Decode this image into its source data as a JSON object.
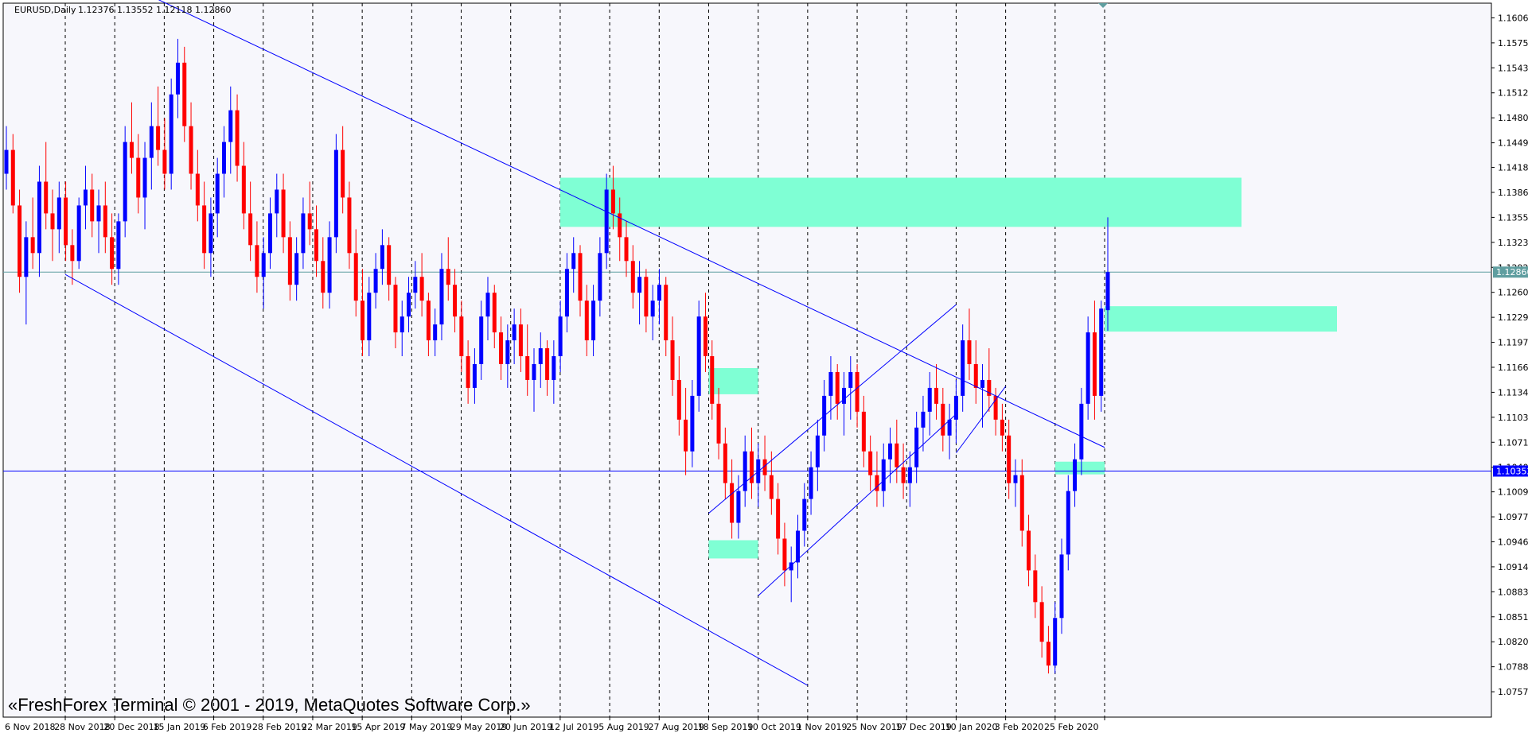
{
  "header": {
    "symbol": "EURUSD,Daily",
    "ohlc": "1.12376 1.13552 1.12118 1.12860"
  },
  "watermark": "«FreshForex Terminal © 2001 - 2019, MetaQuotes Software Corp.»",
  "colors": {
    "background": "#f7f7fc",
    "bull": "#0000ff",
    "bear": "#ff0000",
    "zone": "#7fffd4",
    "channel": "#0000ff",
    "hline_price": "#5f9ea0",
    "hline_blue": "#0000ff",
    "grid": "#000000",
    "frame": "#000000"
  },
  "price_badges": [
    {
      "value": "1.12860",
      "price": 1.1286
    },
    {
      "value": "1.10352",
      "price": 1.10352
    }
  ],
  "chart_data": {
    "type": "candlestick",
    "title": "EURUSD,Daily",
    "ylim": [
      1.0725,
      1.1625
    ],
    "y_ticks": [
      "1.16065",
      "1.15750",
      "1.15435",
      "1.15120",
      "1.14805",
      "1.14490",
      "1.14180",
      "1.13865",
      "1.13550",
      "1.13235",
      "1.12920",
      "1.12605",
      "1.12290",
      "1.11975",
      "1.11660",
      "1.11345",
      "1.11030",
      "1.10715",
      "1.10400",
      "1.10090",
      "1.09775",
      "1.09460",
      "1.09145",
      "1.08830",
      "1.08515",
      "1.08200",
      "1.07885",
      "1.07570"
    ],
    "x_ticks": [
      "6 Nov 2018",
      "28 Nov 2018",
      "20 Dec 2018",
      "15 Jan 2019",
      "6 Feb 2019",
      "28 Feb 2019",
      "22 Mar 2019",
      "15 Apr 2019",
      "7 May 2019",
      "29 May 2019",
      "20 Jun 2019",
      "12 Jul 2019",
      "5 Aug 2019",
      "27 Aug 2019",
      "18 Sep 2019",
      "10 Oct 2019",
      "1 Nov 2019",
      "25 Nov 2019",
      "17 Dec 2019",
      "10 Jan 2020",
      "3 Feb 2020",
      "25 Feb 2020"
    ],
    "grid": "vertical dashed",
    "horizontal_lines": [
      1.1286,
      1.10352
    ],
    "zones": [
      {
        "from": "20 Jun 2019",
        "to": "projected",
        "high": 1.1405,
        "low": 1.1343
      },
      {
        "from": "27 Aug 2019",
        "to": "18 Sep 2019",
        "high": 1.1165,
        "low": 1.1132
      },
      {
        "from": "27 Aug 2019",
        "to": "18 Sep 2019",
        "high": 1.0948,
        "low": 1.0925
      },
      {
        "from": "3 Feb 2020",
        "to": "25 Feb 2020",
        "high": 1.1047,
        "low": 1.1031
      },
      {
        "from": "25 Feb 2020",
        "to": "projected",
        "high": 1.1243,
        "low": 1.1211
      }
    ],
    "trend_lines": [
      {
        "name": "channel-upper",
        "from": [
          "6 Nov 2018",
          1.1685
        ],
        "to": [
          "25 Feb 2020",
          1.1065
        ]
      },
      {
        "name": "channel-lower",
        "from": [
          "6 Nov 2018",
          1.1283
        ],
        "to": [
          "10 Oct 2019",
          1.0765
        ]
      },
      {
        "name": "rising-lower",
        "from": [
          "18 Sep 2019",
          1.0878
        ],
        "to": [
          "17 Dec 2019",
          1.1107
        ]
      },
      {
        "name": "rising-upper",
        "from": [
          "27 Aug 2019",
          1.0982
        ],
        "to": [
          "17 Dec 2019",
          1.1245
        ]
      },
      {
        "name": "rising-short",
        "from": [
          "17 Dec 2019",
          1.1058
        ],
        "to": [
          "10 Jan 2020",
          1.1142
        ]
      }
    ],
    "ohlc": [
      [
        1.141,
        1.147,
        1.139,
        1.144
      ],
      [
        1.144,
        1.146,
        1.136,
        1.137
      ],
      [
        1.137,
        1.139,
        1.126,
        1.128
      ],
      [
        1.128,
        1.135,
        1.122,
        1.133
      ],
      [
        1.133,
        1.138,
        1.129,
        1.131
      ],
      [
        1.131,
        1.142,
        1.128,
        1.14
      ],
      [
        1.14,
        1.145,
        1.134,
        1.136
      ],
      [
        1.136,
        1.139,
        1.13,
        1.134
      ],
      [
        1.134,
        1.14,
        1.131,
        1.138
      ],
      [
        1.138,
        1.14,
        1.13,
        1.132
      ],
      [
        1.132,
        1.134,
        1.127,
        1.13
      ],
      [
        1.13,
        1.138,
        1.129,
        1.137
      ],
      [
        1.137,
        1.142,
        1.134,
        1.139
      ],
      [
        1.139,
        1.141,
        1.133,
        1.135
      ],
      [
        1.135,
        1.139,
        1.131,
        1.137
      ],
      [
        1.137,
        1.14,
        1.131,
        1.133
      ],
      [
        1.133,
        1.136,
        1.127,
        1.129
      ],
      [
        1.129,
        1.136,
        1.127,
        1.135
      ],
      [
        1.135,
        1.147,
        1.133,
        1.145
      ],
      [
        1.145,
        1.15,
        1.141,
        1.143
      ],
      [
        1.143,
        1.146,
        1.136,
        1.138
      ],
      [
        1.138,
        1.145,
        1.134,
        1.143
      ],
      [
        1.143,
        1.15,
        1.139,
        1.147
      ],
      [
        1.147,
        1.152,
        1.142,
        1.144
      ],
      [
        1.144,
        1.148,
        1.139,
        1.141
      ],
      [
        1.141,
        1.153,
        1.139,
        1.151
      ],
      [
        1.151,
        1.158,
        1.148,
        1.155
      ],
      [
        1.155,
        1.157,
        1.145,
        1.147
      ],
      [
        1.147,
        1.15,
        1.139,
        1.141
      ],
      [
        1.141,
        1.144,
        1.135,
        1.137
      ],
      [
        1.137,
        1.14,
        1.129,
        1.131
      ],
      [
        1.131,
        1.138,
        1.128,
        1.136
      ],
      [
        1.136,
        1.143,
        1.133,
        1.141
      ],
      [
        1.141,
        1.147,
        1.138,
        1.145
      ],
      [
        1.145,
        1.152,
        1.141,
        1.149
      ],
      [
        1.149,
        1.151,
        1.14,
        1.142
      ],
      [
        1.142,
        1.145,
        1.134,
        1.136
      ],
      [
        1.136,
        1.14,
        1.13,
        1.132
      ],
      [
        1.132,
        1.135,
        1.126,
        1.128
      ],
      [
        1.128,
        1.133,
        1.124,
        1.131
      ],
      [
        1.131,
        1.138,
        1.129,
        1.136
      ],
      [
        1.136,
        1.141,
        1.133,
        1.139
      ],
      [
        1.139,
        1.141,
        1.131,
        1.133
      ],
      [
        1.133,
        1.135,
        1.125,
        1.127
      ],
      [
        1.127,
        1.133,
        1.125,
        1.131
      ],
      [
        1.131,
        1.138,
        1.129,
        1.136
      ],
      [
        1.136,
        1.14,
        1.132,
        1.134
      ],
      [
        1.134,
        1.137,
        1.128,
        1.13
      ],
      [
        1.13,
        1.133,
        1.124,
        1.126
      ],
      [
        1.126,
        1.135,
        1.124,
        1.133
      ],
      [
        1.133,
        1.146,
        1.131,
        1.144
      ],
      [
        1.144,
        1.147,
        1.136,
        1.138
      ],
      [
        1.138,
        1.14,
        1.129,
        1.131
      ],
      [
        1.131,
        1.134,
        1.123,
        1.125
      ],
      [
        1.125,
        1.129,
        1.118,
        1.12
      ],
      [
        1.12,
        1.128,
        1.118,
        1.126
      ],
      [
        1.126,
        1.131,
        1.124,
        1.129
      ],
      [
        1.129,
        1.134,
        1.127,
        1.132
      ],
      [
        1.132,
        1.133,
        1.125,
        1.127
      ],
      [
        1.127,
        1.128,
        1.119,
        1.121
      ],
      [
        1.121,
        1.125,
        1.118,
        1.123
      ],
      [
        1.123,
        1.128,
        1.121,
        1.126
      ],
      [
        1.126,
        1.13,
        1.124,
        1.128
      ],
      [
        1.128,
        1.131,
        1.123,
        1.125
      ],
      [
        1.125,
        1.126,
        1.118,
        1.12
      ],
      [
        1.12,
        1.124,
        1.118,
        1.122
      ],
      [
        1.122,
        1.131,
        1.12,
        1.129
      ],
      [
        1.129,
        1.133,
        1.125,
        1.127
      ],
      [
        1.127,
        1.129,
        1.121,
        1.123
      ],
      [
        1.123,
        1.125,
        1.116,
        1.118
      ],
      [
        1.118,
        1.12,
        1.112,
        1.114
      ],
      [
        1.114,
        1.119,
        1.112,
        1.117
      ],
      [
        1.117,
        1.125,
        1.115,
        1.123
      ],
      [
        1.123,
        1.128,
        1.12,
        1.126
      ],
      [
        1.126,
        1.127,
        1.119,
        1.121
      ],
      [
        1.121,
        1.123,
        1.115,
        1.117
      ],
      [
        1.117,
        1.122,
        1.114,
        1.12
      ],
      [
        1.12,
        1.124,
        1.117,
        1.122
      ],
      [
        1.122,
        1.124,
        1.116,
        1.118
      ],
      [
        1.118,
        1.122,
        1.113,
        1.115
      ],
      [
        1.115,
        1.119,
        1.111,
        1.117
      ],
      [
        1.117,
        1.121,
        1.114,
        1.119
      ],
      [
        1.119,
        1.12,
        1.113,
        1.115
      ],
      [
        1.115,
        1.12,
        1.112,
        1.118
      ],
      [
        1.118,
        1.125,
        1.116,
        1.123
      ],
      [
        1.123,
        1.131,
        1.121,
        1.129
      ],
      [
        1.129,
        1.133,
        1.126,
        1.131
      ],
      [
        1.131,
        1.132,
        1.123,
        1.125
      ],
      [
        1.125,
        1.127,
        1.118,
        1.12
      ],
      [
        1.12,
        1.127,
        1.118,
        1.125
      ],
      [
        1.125,
        1.133,
        1.123,
        1.131
      ],
      [
        1.131,
        1.141,
        1.129,
        1.139
      ],
      [
        1.139,
        1.142,
        1.134,
        1.136
      ],
      [
        1.136,
        1.138,
        1.13,
        1.133
      ],
      [
        1.133,
        1.135,
        1.128,
        1.13
      ],
      [
        1.13,
        1.132,
        1.124,
        1.126
      ],
      [
        1.126,
        1.13,
        1.122,
        1.128
      ],
      [
        1.128,
        1.129,
        1.121,
        1.123
      ],
      [
        1.123,
        1.127,
        1.12,
        1.125
      ],
      [
        1.125,
        1.129,
        1.122,
        1.127
      ],
      [
        1.127,
        1.128,
        1.118,
        1.12
      ],
      [
        1.12,
        1.123,
        1.113,
        1.115
      ],
      [
        1.115,
        1.118,
        1.108,
        1.11
      ],
      [
        1.11,
        1.114,
        1.103,
        1.106
      ],
      [
        1.106,
        1.115,
        1.104,
        1.113
      ],
      [
        1.113,
        1.125,
        1.111,
        1.123
      ],
      [
        1.123,
        1.126,
        1.116,
        1.118
      ],
      [
        1.118,
        1.12,
        1.11,
        1.112
      ],
      [
        1.112,
        1.114,
        1.105,
        1.107
      ],
      [
        1.107,
        1.109,
        1.1,
        1.102
      ],
      [
        1.102,
        1.105,
        1.095,
        1.097
      ],
      [
        1.097,
        1.103,
        1.095,
        1.101
      ],
      [
        1.101,
        1.108,
        1.099,
        1.106
      ],
      [
        1.106,
        1.109,
        1.1,
        1.102
      ],
      [
        1.102,
        1.107,
        1.099,
        1.105
      ],
      [
        1.105,
        1.108,
        1.101,
        1.103
      ],
      [
        1.103,
        1.106,
        1.098,
        1.1
      ],
      [
        1.1,
        1.102,
        1.093,
        1.095
      ],
      [
        1.095,
        1.097,
        1.089,
        1.091
      ],
      [
        1.091,
        1.094,
        1.087,
        1.092
      ],
      [
        1.092,
        1.098,
        1.09,
        1.096
      ],
      [
        1.096,
        1.102,
        1.094,
        1.1
      ],
      [
        1.1,
        1.106,
        1.098,
        1.104
      ],
      [
        1.104,
        1.11,
        1.101,
        1.108
      ],
      [
        1.108,
        1.115,
        1.106,
        1.113
      ],
      [
        1.113,
        1.118,
        1.11,
        1.116
      ],
      [
        1.116,
        1.117,
        1.11,
        1.112
      ],
      [
        1.112,
        1.116,
        1.108,
        1.114
      ],
      [
        1.114,
        1.118,
        1.11,
        1.116
      ],
      [
        1.116,
        1.117,
        1.109,
        1.111
      ],
      [
        1.111,
        1.113,
        1.104,
        1.106
      ],
      [
        1.106,
        1.108,
        1.101,
        1.103
      ],
      [
        1.103,
        1.106,
        1.099,
        1.101
      ],
      [
        1.101,
        1.107,
        1.099,
        1.105
      ],
      [
        1.105,
        1.109,
        1.102,
        1.107
      ],
      [
        1.107,
        1.11,
        1.102,
        1.104
      ],
      [
        1.104,
        1.107,
        1.1,
        1.102
      ],
      [
        1.102,
        1.106,
        1.099,
        1.104
      ],
      [
        1.104,
        1.111,
        1.102,
        1.109
      ],
      [
        1.109,
        1.113,
        1.106,
        1.111
      ],
      [
        1.111,
        1.116,
        1.108,
        1.114
      ],
      [
        1.114,
        1.117,
        1.11,
        1.112
      ],
      [
        1.112,
        1.114,
        1.106,
        1.108
      ],
      [
        1.108,
        1.112,
        1.105,
        1.11
      ],
      [
        1.11,
        1.115,
        1.107,
        1.113
      ],
      [
        1.113,
        1.122,
        1.111,
        1.12
      ],
      [
        1.12,
        1.124,
        1.115,
        1.117
      ],
      [
        1.117,
        1.12,
        1.112,
        1.114
      ],
      [
        1.114,
        1.117,
        1.109,
        1.115
      ],
      [
        1.115,
        1.119,
        1.111,
        1.113
      ],
      [
        1.113,
        1.114,
        1.108,
        1.11
      ],
      [
        1.11,
        1.112,
        1.106,
        1.108
      ],
      [
        1.108,
        1.11,
        1.1,
        1.102
      ],
      [
        1.102,
        1.105,
        1.099,
        1.103
      ],
      [
        1.103,
        1.105,
        1.094,
        1.096
      ],
      [
        1.096,
        1.098,
        1.089,
        1.091
      ],
      [
        1.091,
        1.093,
        1.085,
        1.087
      ],
      [
        1.087,
        1.089,
        1.08,
        1.082
      ],
      [
        1.082,
        1.084,
        1.078,
        1.079
      ],
      [
        1.079,
        1.087,
        1.078,
        1.085
      ],
      [
        1.085,
        1.095,
        1.083,
        1.093
      ],
      [
        1.093,
        1.103,
        1.091,
        1.101
      ],
      [
        1.101,
        1.107,
        1.099,
        1.105
      ],
      [
        1.105,
        1.114,
        1.103,
        1.112
      ],
      [
        1.112,
        1.123,
        1.11,
        1.121
      ],
      [
        1.121,
        1.125,
        1.11,
        1.113
      ],
      [
        1.113,
        1.125,
        1.111,
        1.124
      ],
      [
        1.1238,
        1.1355,
        1.1212,
        1.1286
      ]
    ]
  }
}
